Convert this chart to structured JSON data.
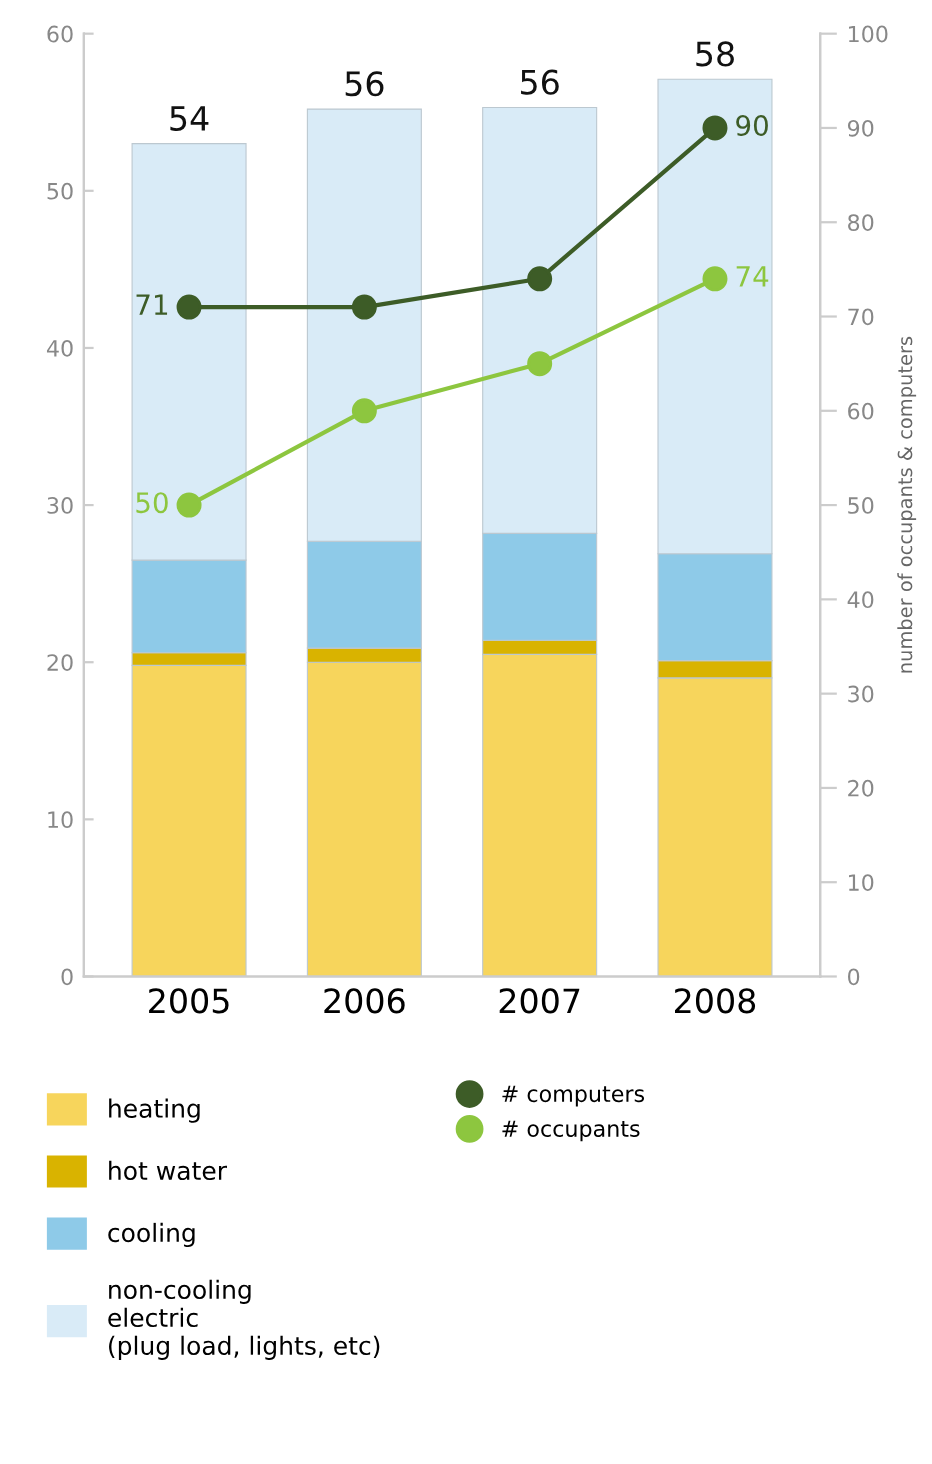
{
  "chart_data": {
    "type": "bar",
    "stacked": true,
    "categories": [
      "2005",
      "2006",
      "2007",
      "2008"
    ],
    "series": [
      {
        "name": "heating",
        "color": "#f7d55c",
        "values": [
          19.8,
          20.0,
          20.5,
          19.0
        ]
      },
      {
        "name": "hot water",
        "color": "#d9b300",
        "values": [
          0.8,
          0.9,
          0.9,
          1.1
        ]
      },
      {
        "name": "cooling",
        "color": "#8ecae8",
        "values": [
          5.9,
          6.8,
          6.8,
          6.8
        ]
      },
      {
        "name": "non-cooling\nelectric\n(plug load, lights, etc)",
        "color": "#d9ebf7",
        "values": [
          26.5,
          27.5,
          27.1,
          30.2
        ]
      },
      {
        "name": "# computers",
        "type": "line",
        "axis": "y2",
        "color": "#3d5c27",
        "marker": "circle",
        "values": [
          71,
          71,
          74,
          90
        ],
        "value_labels": [
          "71",
          null,
          null,
          "90"
        ]
      },
      {
        "name": "# occupants",
        "type": "line",
        "axis": "y2",
        "color": "#8dc63f",
        "marker": "circle",
        "values": [
          50,
          60,
          65,
          74
        ],
        "value_labels": [
          "50",
          null,
          null,
          "74"
        ]
      }
    ],
    "totals": [
      "54",
      "56",
      "56",
      "58"
    ],
    "ylim": [
      0,
      60
    ],
    "yticks": [
      0,
      10,
      20,
      30,
      40,
      50,
      60
    ],
    "y2lim": [
      0,
      100
    ],
    "y2ticks": [
      0,
      10,
      20,
      30,
      40,
      50,
      60,
      70,
      80,
      90,
      100
    ],
    "y2label": "number of occupants & computers",
    "grid": false,
    "legend": "bottom"
  }
}
